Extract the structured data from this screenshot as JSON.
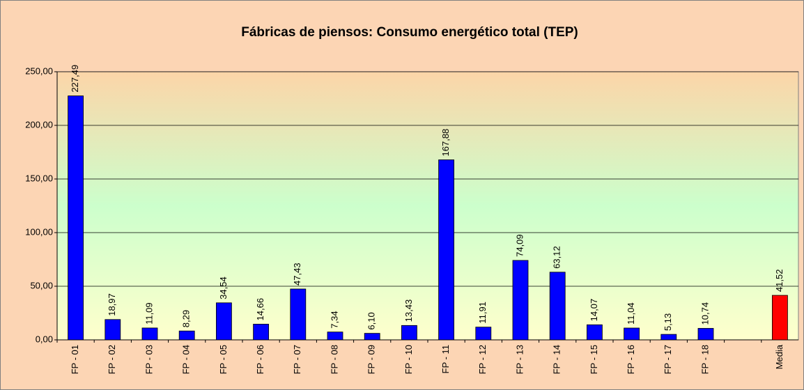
{
  "chart_data": {
    "type": "bar",
    "title": "Fábricas de piensos: Consumo energético total (TEP)",
    "categories": [
      "FP - 01",
      "FP - 02",
      "FP - 03",
      "FP - 04",
      "FP - 05",
      "FP - 06",
      "FP - 07",
      "FP - 08",
      "FP - 09",
      "FP - 10",
      "FP - 11",
      "FP - 12",
      "FP - 13",
      "FP - 14",
      "FP - 15",
      "FP - 16",
      "FP - 17",
      "FP - 18",
      null,
      "Media"
    ],
    "values": [
      227.49,
      18.97,
      11.09,
      8.29,
      34.54,
      14.66,
      47.43,
      7.34,
      6.1,
      13.43,
      167.88,
      11.91,
      74.09,
      63.12,
      14.07,
      11.04,
      5.13,
      10.74,
      null,
      41.52
    ],
    "value_labels": [
      "227,49",
      "18,97",
      "11,09",
      "8,29",
      "34,54",
      "14,66",
      "47,43",
      "7,34",
      "6,10",
      "13,43",
      "167,88",
      "11,91",
      "74,09",
      "63,12",
      "14,07",
      "11,04",
      "5,13",
      "10,74",
      null,
      "41,52"
    ],
    "colors": [
      "#0000ff",
      "#0000ff",
      "#0000ff",
      "#0000ff",
      "#0000ff",
      "#0000ff",
      "#0000ff",
      "#0000ff",
      "#0000ff",
      "#0000ff",
      "#0000ff",
      "#0000ff",
      "#0000ff",
      "#0000ff",
      "#0000ff",
      "#0000ff",
      "#0000ff",
      "#0000ff",
      null,
      "#ff0000"
    ],
    "ylim": [
      0,
      250
    ],
    "yticks": [
      {
        "value": 0,
        "label": "0,00"
      },
      {
        "value": 50,
        "label": "50,00"
      },
      {
        "value": 100,
        "label": "100,00"
      },
      {
        "value": 150,
        "label": "150,00"
      },
      {
        "value": 200,
        "label": "200,00"
      },
      {
        "value": 250,
        "label": "250,00"
      }
    ],
    "grid": true
  }
}
